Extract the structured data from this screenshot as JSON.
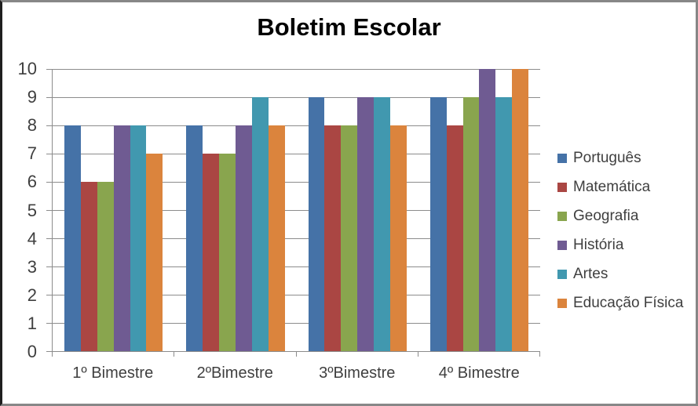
{
  "title": "Boletim Escolar",
  "chart_data": {
    "type": "bar",
    "title": "Boletim Escolar",
    "xlabel": "",
    "ylabel": "",
    "categories": [
      "1º Bimestre",
      "2ºBimestre",
      "3ºBimestre",
      "4º Bimestre"
    ],
    "series": [
      {
        "name": "Português",
        "color": "#4572A7",
        "values": [
          8,
          8,
          9,
          9
        ]
      },
      {
        "name": "Matemática",
        "color": "#AA4643",
        "values": [
          6,
          7,
          8,
          8
        ]
      },
      {
        "name": "Geografia",
        "color": "#89A54E",
        "values": [
          6,
          7,
          8,
          9
        ]
      },
      {
        "name": "História",
        "color": "#6F5B92",
        "values": [
          8,
          8,
          9,
          10
        ]
      },
      {
        "name": "Artes",
        "color": "#4198AF",
        "values": [
          8,
          9,
          9,
          9
        ]
      },
      {
        "name": "Educação Física",
        "color": "#DB843D",
        "values": [
          7,
          8,
          8,
          10
        ]
      }
    ],
    "ylim": [
      0,
      10
    ],
    "yticks": [
      "0",
      "1",
      "2",
      "3",
      "4",
      "5",
      "6",
      "7",
      "8",
      "9",
      "10"
    ],
    "grid": true,
    "legend_position": "right"
  },
  "colors": {
    "gridline": "#8c8c8c",
    "axis": "#8c8c8c",
    "tick_text": "#3f3f3f",
    "title_text": "#000000",
    "frame_border": "#878787",
    "frame_border_left": "#1f1f1f",
    "background": "#ffffff"
  }
}
